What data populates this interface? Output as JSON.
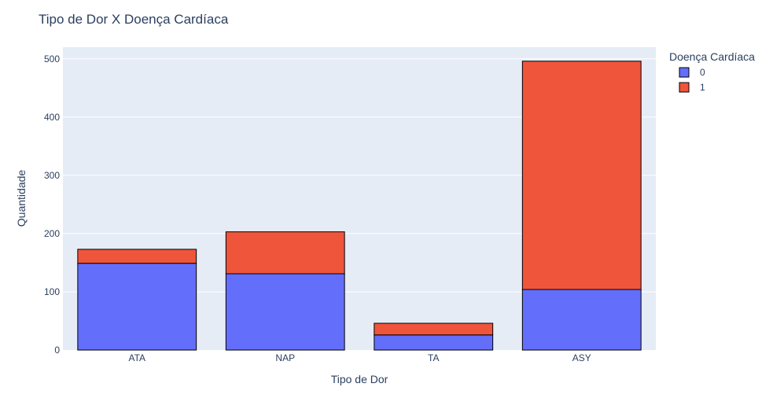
{
  "chart_data": {
    "type": "bar",
    "barmode": "stack",
    "title": "Tipo de Dor X Doença Cardíaca",
    "xlabel": "Tipo de Dor",
    "ylabel": "Quantidade",
    "categories": [
      "ATA",
      "NAP",
      "TA",
      "ASY"
    ],
    "series": [
      {
        "name": "0",
        "values": [
          149,
          131,
          26,
          104
        ],
        "color": "#636efa"
      },
      {
        "name": "1",
        "values": [
          24,
          72,
          20,
          392
        ],
        "color": "#ef553b"
      }
    ],
    "ylim": [
      0,
      520
    ],
    "yticks": [
      0,
      100,
      200,
      300,
      400,
      500
    ],
    "legend": {
      "title": "Doença Cardíaca",
      "placement": "top-right"
    },
    "plot_background": "#e5ecf6",
    "grid": true
  }
}
